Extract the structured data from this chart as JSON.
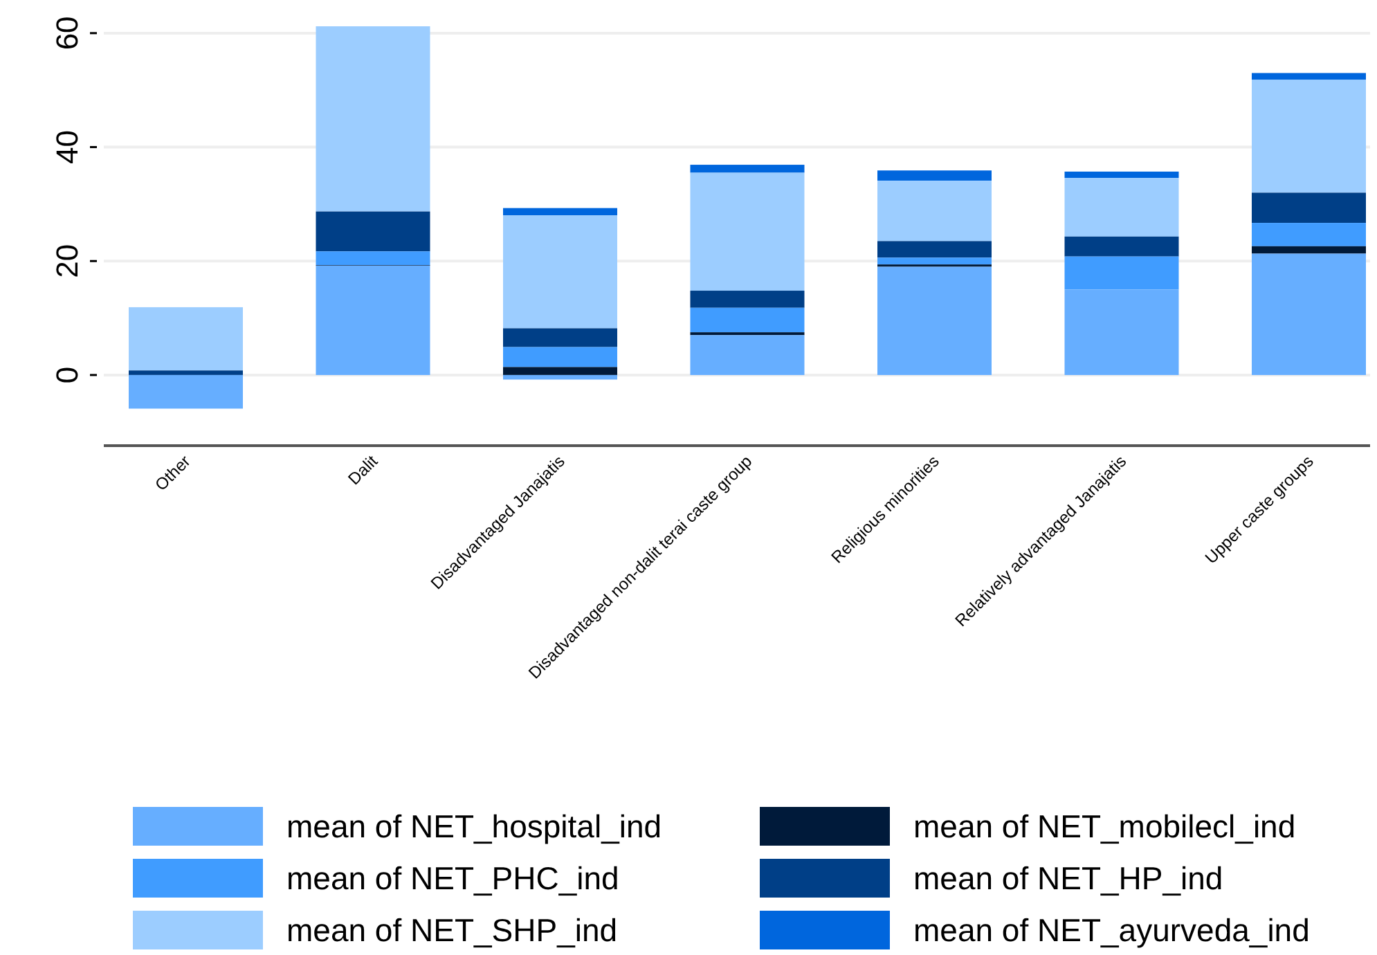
{
  "chart_data": {
    "type": "bar",
    "stacked": true,
    "categories": [
      "Other",
      "Dalit",
      "Disadvantaged Janajatis",
      "Disadvantaged non-dalit terai caste group",
      "Religious minorities",
      "Relatively advantaged Janajatis",
      "Upper caste groups"
    ],
    "series": [
      {
        "name": "mean of NET_hospital_ind",
        "color": "#66aeff",
        "values": [
          -5.9,
          19.2,
          -0.8,
          7.0,
          19.0,
          15.0,
          21.3
        ]
      },
      {
        "name": "mean of NET_mobilecl_ind",
        "color": "#001a3a",
        "values": [
          0,
          0.1,
          1.4,
          0.5,
          0.4,
          0,
          1.3
        ]
      },
      {
        "name": "mean of NET_PHC_ind",
        "color": "#409cff",
        "values": [
          0,
          2.4,
          3.5,
          4.3,
          1.2,
          5.8,
          4.1
        ]
      },
      {
        "name": "mean of NET_HP_ind",
        "color": "#003f87",
        "values": [
          0.8,
          7.0,
          3.3,
          3.0,
          2.9,
          3.5,
          5.3
        ]
      },
      {
        "name": "mean of NET_SHP_ind",
        "color": "#9ccdff",
        "values": [
          11.1,
          32.5,
          19.8,
          20.7,
          10.6,
          10.3,
          19.8
        ]
      },
      {
        "name": "mean of NET_ayurveda_ind",
        "color": "#0066dd",
        "values": [
          0,
          0,
          1.3,
          1.4,
          1.8,
          1.1,
          1.2
        ]
      }
    ],
    "ylim": [
      -12.4,
      61.2
    ],
    "yticks": [
      0,
      20,
      40,
      60
    ],
    "grid": "y",
    "legend": "bottom"
  }
}
